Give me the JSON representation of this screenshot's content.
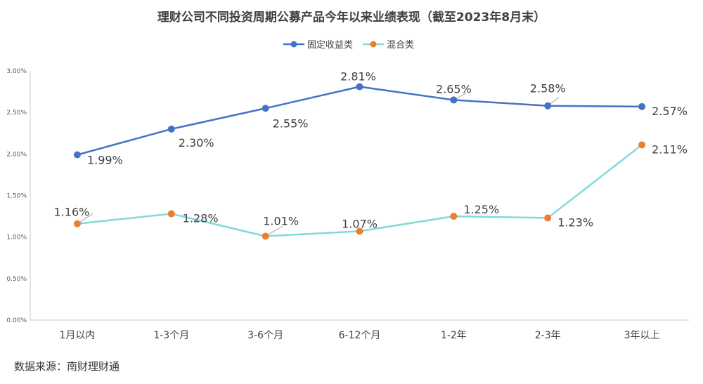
{
  "chart_data": {
    "type": "line",
    "title": "理财公司不同投资周期公募产品今年以来业绩表现（截至2023年8月末）",
    "categories": [
      "1月以内",
      "1-3个月",
      "3-6个月",
      "6-12个月",
      "1-2年",
      "2-3年",
      "3年以上"
    ],
    "yticks": [
      "0.00%",
      "0.50%",
      "1.00%",
      "1.50%",
      "2.00%",
      "2.50%",
      "3.00%"
    ],
    "ylim": [
      0,
      3
    ],
    "grid": false,
    "legend_position": "top-center",
    "series": [
      {
        "name": "固定收益类",
        "line_color": "#4472C4",
        "marker_color": "#4472C4",
        "values": [
          1.99,
          2.3,
          2.55,
          2.81,
          2.65,
          2.58,
          2.57
        ],
        "labels": [
          "1.99%",
          "2.30%",
          "2.55%",
          "2.81%",
          "2.65%",
          "2.58%",
          "2.57%"
        ]
      },
      {
        "name": "混合类",
        "line_color": "#7FDBDA",
        "marker_color": "#ED7D31",
        "values": [
          1.16,
          1.28,
          1.01,
          1.07,
          1.25,
          1.23,
          2.11
        ],
        "labels": [
          "1.16%",
          "1.28%",
          "1.01%",
          "1.07%",
          "1.25%",
          "1.23%",
          "2.11%"
        ]
      }
    ]
  },
  "source": "数据来源：南财理财通"
}
